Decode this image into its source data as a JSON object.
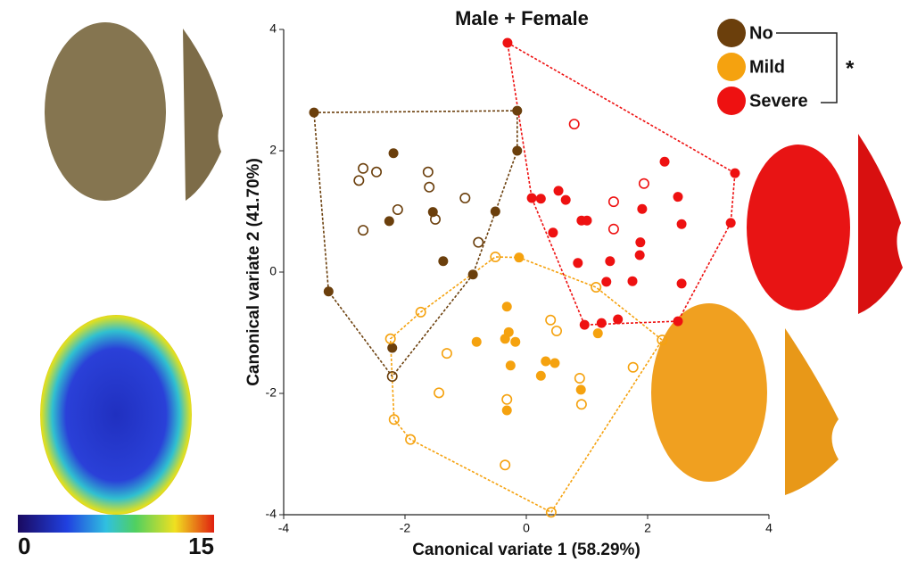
{
  "chart_data": {
    "type": "scatter",
    "title": "Male + Female",
    "x_label": "Canonical variate 1 (58.29%)",
    "y_label": "Canonical variate 2 (41.70%)",
    "xlim": [
      -4,
      4
    ],
    "ylim": [
      -4,
      4
    ],
    "xticks": [
      -4,
      -2,
      0,
      2,
      4
    ],
    "yticks": [
      -4,
      -2,
      0,
      2,
      4
    ],
    "annotation": "*",
    "colorbar_ticks": [
      0,
      15
    ],
    "series": [
      {
        "name": "No",
        "color": "#6b3f0c",
        "x": [
          -3.5,
          -0.15,
          -0.15,
          -3.26,
          -2.19,
          -2.26,
          -1.54,
          -0.51,
          -1.37,
          -0.88,
          -2.21,
          -2.69,
          -2.76,
          -2.47,
          -2.12,
          -2.69,
          -1.62,
          -1.6,
          -1.5,
          -1.01,
          -0.79,
          -2.21
        ],
        "values": [
          2.63,
          2.66,
          2.0,
          -0.32,
          1.96,
          0.84,
          0.99,
          1.0,
          0.18,
          -0.04,
          -1.25,
          1.71,
          1.51,
          1.65,
          1.03,
          0.69,
          1.65,
          1.4,
          0.87,
          1.22,
          0.49,
          -1.72
        ],
        "open": [
          false,
          false,
          false,
          false,
          false,
          false,
          false,
          false,
          false,
          false,
          false,
          true,
          true,
          true,
          true,
          true,
          true,
          true,
          true,
          true,
          true,
          true
        ]
      },
      {
        "name": "Mild",
        "color": "#f5a20f",
        "x": [
          -0.32,
          -0.29,
          -0.35,
          -0.18,
          -0.82,
          -0.26,
          0.32,
          0.47,
          0.24,
          0.9,
          -0.32,
          1.18,
          -0.12,
          -0.51,
          -1.74,
          -2.24,
          -1.31,
          -1.44,
          -2.18,
          -1.91,
          -0.32,
          -0.35,
          0.41,
          0.4,
          0.5,
          1.15,
          1.76,
          2.24,
          0.88,
          0.91
        ],
        "values": [
          -0.57,
          -0.99,
          -1.1,
          -1.15,
          -1.15,
          -1.54,
          -1.47,
          -1.5,
          -1.71,
          -1.94,
          -2.28,
          -1.01,
          0.24,
          0.25,
          -0.66,
          -1.1,
          -1.34,
          -1.99,
          -2.43,
          -2.76,
          -2.1,
          -3.18,
          -3.96,
          -0.79,
          -0.97,
          -0.25,
          -1.57,
          -1.12,
          -1.75,
          -2.18
        ],
        "open": [
          false,
          false,
          false,
          false,
          false,
          false,
          false,
          false,
          false,
          false,
          false,
          false,
          false,
          true,
          true,
          true,
          true,
          true,
          true,
          true,
          true,
          true,
          true,
          true,
          true,
          true,
          true,
          true,
          true,
          true
        ]
      },
      {
        "name": "Severe",
        "color": "#ee1111",
        "x": [
          -0.31,
          0.09,
          0.24,
          0.53,
          0.65,
          0.44,
          0.91,
          1.0,
          0.85,
          1.38,
          1.32,
          1.75,
          1.87,
          1.88,
          1.91,
          2.28,
          2.5,
          2.56,
          2.56,
          3.37,
          3.44,
          0.96,
          1.24,
          1.51,
          2.5,
          0.79,
          1.44,
          1.94,
          1.44
        ],
        "values": [
          3.78,
          1.22,
          1.21,
          1.34,
          1.19,
          0.65,
          0.85,
          0.85,
          0.15,
          0.18,
          -0.16,
          -0.15,
          0.28,
          0.49,
          1.04,
          1.82,
          1.24,
          0.79,
          -0.19,
          0.81,
          1.63,
          -0.87,
          -0.84,
          -0.78,
          -0.81,
          2.44,
          1.16,
          1.46,
          0.71
        ],
        "open": [
          false,
          false,
          false,
          false,
          false,
          false,
          false,
          false,
          false,
          false,
          false,
          false,
          false,
          false,
          false,
          false,
          false,
          false,
          false,
          false,
          false,
          false,
          false,
          false,
          false,
          true,
          true,
          true,
          true
        ]
      }
    ]
  }
}
